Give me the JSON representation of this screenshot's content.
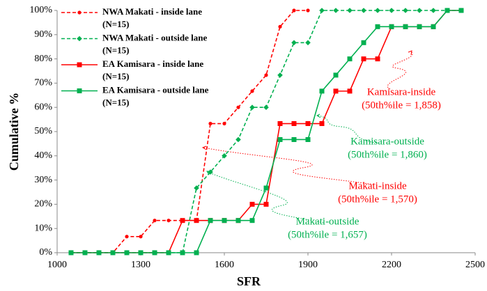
{
  "chart_data": {
    "type": "line",
    "x_label": "SFR",
    "y_label": "Cumulative %",
    "xlim": [
      1000,
      2500
    ],
    "xticks": [
      1000,
      1300,
      1600,
      1900,
      2200,
      2500
    ],
    "ylim": [
      0,
      100
    ],
    "yticks": [
      {
        "value": 0,
        "label": "0%"
      },
      {
        "value": 10,
        "label": "10%"
      },
      {
        "value": 20,
        "label": "20%"
      },
      {
        "value": 30,
        "label": "30%"
      },
      {
        "value": 40,
        "label": "40%"
      },
      {
        "value": 50,
        "label": "50%"
      },
      {
        "value": 60,
        "label": "60%"
      },
      {
        "value": 70,
        "label": "70%"
      },
      {
        "value": 80,
        "label": "80%"
      },
      {
        "value": 90,
        "label": "90%"
      },
      {
        "value": 100,
        "label": "100%"
      }
    ],
    "grid": false,
    "legend": "top-left",
    "series": [
      {
        "name": "NWA Makati - inside lane",
        "n_label": "(N=15)",
        "color": "#ff0000",
        "dashed": true,
        "marker": "circle",
        "x": [
          1050,
          1100,
          1150,
          1200,
          1250,
          1300,
          1350,
          1400,
          1450,
          1500,
          1550,
          1600,
          1650,
          1700,
          1750,
          1800,
          1850,
          1900
        ],
        "values": [
          0,
          0,
          0,
          0,
          6.67,
          6.67,
          13.3,
          13.3,
          13.3,
          13.3,
          53.3,
          53.3,
          60,
          66.7,
          73.3,
          93.3,
          100,
          100
        ]
      },
      {
        "name": "NWA Makati - outside lane",
        "n_label": "(N=15)",
        "color": "#00b050",
        "dashed": true,
        "marker": "diamond",
        "x": [
          1050,
          1100,
          1150,
          1200,
          1250,
          1300,
          1350,
          1400,
          1450,
          1500,
          1550,
          1600,
          1650,
          1700,
          1750,
          1800,
          1850,
          1900,
          1950,
          2000,
          2050,
          2100,
          2150,
          2200,
          2250,
          2300,
          2350,
          2400,
          2450
        ],
        "values": [
          0,
          0,
          0,
          0,
          0,
          0,
          0,
          0,
          0,
          26.7,
          33.3,
          40,
          46.7,
          60,
          60,
          73.3,
          86.7,
          86.7,
          100,
          100,
          100,
          100,
          100,
          100,
          100,
          100,
          100,
          100,
          100
        ]
      },
      {
        "name": "EA Kamisara - inside lane",
        "n_label": "(N=15)",
        "color": "#ff0000",
        "dashed": false,
        "marker": "square",
        "x": [
          1050,
          1100,
          1150,
          1200,
          1250,
          1300,
          1350,
          1400,
          1450,
          1500,
          1550,
          1600,
          1650,
          1700,
          1750,
          1800,
          1850,
          1900,
          1950,
          2000,
          2050,
          2100,
          2150,
          2200,
          2250,
          2300,
          2350,
          2400,
          2450
        ],
        "values": [
          0,
          0,
          0,
          0,
          0,
          0,
          0,
          0,
          13.3,
          13.3,
          13.3,
          13.3,
          13.3,
          20,
          20,
          53.3,
          53.3,
          53.3,
          53.3,
          66.7,
          66.7,
          80,
          80,
          93.3,
          93.3,
          93.3,
          93.3,
          100,
          100
        ]
      },
      {
        "name": "EA Kamisara - outside lane",
        "n_label": "(N=15)",
        "color": "#00b050",
        "dashed": false,
        "marker": "square",
        "x": [
          1050,
          1100,
          1150,
          1200,
          1250,
          1300,
          1350,
          1400,
          1450,
          1500,
          1550,
          1600,
          1650,
          1700,
          1750,
          1800,
          1850,
          1900,
          1950,
          2000,
          2050,
          2100,
          2150,
          2200,
          2250,
          2300,
          2350,
          2400,
          2450
        ],
        "values": [
          0,
          0,
          0,
          0,
          0,
          0,
          0,
          0,
          0,
          0,
          13.3,
          13.3,
          13.3,
          13.3,
          26.7,
          46.7,
          46.7,
          46.7,
          66.7,
          73.3,
          80,
          86.7,
          93.3,
          93.3,
          93.3,
          93.3,
          93.3,
          100,
          100
        ]
      }
    ],
    "annotations": [
      {
        "lines": [
          "Kamisara-inside",
          "(50th%ile = 1,858)"
        ],
        "color": "#ff0000"
      },
      {
        "lines": [
          "Kamisara-outside",
          "(50th%ile = 1,860)"
        ],
        "color": "#00b050"
      },
      {
        "lines": [
          "Makati-inside",
          "(50th%ile = 1,570)"
        ],
        "color": "#ff0000"
      },
      {
        "lines": [
          "Makati-outside",
          "(50th%ile = 1,657)"
        ],
        "color": "#00b050"
      }
    ]
  }
}
